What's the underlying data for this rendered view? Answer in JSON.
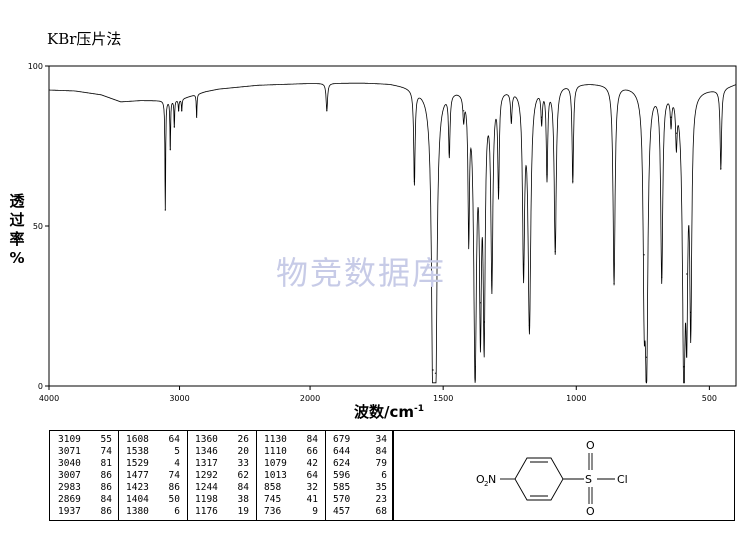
{
  "header": {
    "title": "KBr压片法"
  },
  "watermark": "物竞数据库",
  "chart_data": {
    "type": "line",
    "xlabel": "波数/cm",
    "xlabel_sup": "-1",
    "ylabel": [
      "透",
      "过",
      "率",
      "%"
    ],
    "xlim": [
      4000,
      400
    ],
    "ylim": [
      0,
      100
    ],
    "x_ticks": [
      4000,
      3000,
      2000,
      1500,
      1000,
      500
    ],
    "y_ticks": [
      0,
      50,
      100
    ],
    "grid": false,
    "baseline": [
      [
        4000,
        92.5
      ],
      [
        3800,
        92.2
      ],
      [
        3600,
        91
      ],
      [
        3450,
        88.8
      ],
      [
        3300,
        89.2
      ],
      [
        3170,
        89.2
      ],
      [
        3000,
        89.5
      ],
      [
        2900,
        90.8
      ],
      [
        2800,
        92
      ],
      [
        2700,
        92.8
      ],
      [
        2600,
        93.2
      ],
      [
        2400,
        94
      ],
      [
        2200,
        94.3
      ],
      [
        2000,
        94.6
      ],
      [
        1800,
        94.8
      ],
      [
        1700,
        94.6
      ],
      [
        1650,
        94
      ],
      [
        1550,
        92.5
      ],
      [
        1450,
        93.5
      ],
      [
        1350,
        93.5
      ],
      [
        1250,
        93.5
      ],
      [
        1150,
        94
      ],
      [
        1050,
        94.5
      ],
      [
        950,
        94.8
      ],
      [
        850,
        94.5
      ],
      [
        750,
        93.5
      ],
      [
        650,
        93
      ],
      [
        550,
        92.8
      ],
      [
        470,
        93
      ],
      [
        420,
        94
      ],
      [
        400,
        94.5
      ]
    ],
    "peaks": [
      {
        "x": 3109,
        "y": 55
      },
      {
        "x": 3071,
        "y": 74
      },
      {
        "x": 3040,
        "y": 81
      },
      {
        "x": 3007,
        "y": 86
      },
      {
        "x": 2983,
        "y": 86
      },
      {
        "x": 2869,
        "y": 84
      },
      {
        "x": 1937,
        "y": 86
      },
      {
        "x": 1608,
        "y": 64
      },
      {
        "x": 1538,
        "y": 5
      },
      {
        "x": 1529,
        "y": 4
      },
      {
        "x": 1477,
        "y": 74
      },
      {
        "x": 1423,
        "y": 86
      },
      {
        "x": 1404,
        "y": 50
      },
      {
        "x": 1380,
        "y": 6
      },
      {
        "x": 1360,
        "y": 26
      },
      {
        "x": 1346,
        "y": 20
      },
      {
        "x": 1317,
        "y": 33
      },
      {
        "x": 1292,
        "y": 62
      },
      {
        "x": 1244,
        "y": 84
      },
      {
        "x": 1198,
        "y": 38
      },
      {
        "x": 1176,
        "y": 19
      },
      {
        "x": 1130,
        "y": 84
      },
      {
        "x": 1110,
        "y": 66
      },
      {
        "x": 1079,
        "y": 42
      },
      {
        "x": 1013,
        "y": 64
      },
      {
        "x": 858,
        "y": 32
      },
      {
        "x": 745,
        "y": 41
      },
      {
        "x": 736,
        "y": 9
      },
      {
        "x": 679,
        "y": 34
      },
      {
        "x": 644,
        "y": 84
      },
      {
        "x": 624,
        "y": 79
      },
      {
        "x": 596,
        "y": 6
      },
      {
        "x": 585,
        "y": 35
      },
      {
        "x": 570,
        "y": 23
      },
      {
        "x": 457,
        "y": 68
      }
    ]
  },
  "peak_table": [
    [
      [
        "3109",
        "55"
      ],
      [
        "3071",
        "74"
      ],
      [
        "3040",
        "81"
      ],
      [
        "3007",
        "86"
      ],
      [
        "2983",
        "86"
      ],
      [
        "2869",
        "84"
      ],
      [
        "1937",
        "86"
      ]
    ],
    [
      [
        "1608",
        "64"
      ],
      [
        "1538",
        "5"
      ],
      [
        "1529",
        "4"
      ],
      [
        "1477",
        "74"
      ],
      [
        "1423",
        "86"
      ],
      [
        "1404",
        "50"
      ],
      [
        "1380",
        "6"
      ]
    ],
    [
      [
        "1360",
        "26"
      ],
      [
        "1346",
        "20"
      ],
      [
        "1317",
        "33"
      ],
      [
        "1292",
        "62"
      ],
      [
        "1244",
        "84"
      ],
      [
        "1198",
        "38"
      ],
      [
        "1176",
        "19"
      ]
    ],
    [
      [
        "1130",
        "84"
      ],
      [
        "1110",
        "66"
      ],
      [
        "1079",
        "42"
      ],
      [
        "1013",
        "64"
      ],
      [
        "858",
        "32"
      ],
      [
        "745",
        "41"
      ],
      [
        "736",
        "9"
      ]
    ],
    [
      [
        "679",
        "34"
      ],
      [
        "644",
        "84"
      ],
      [
        "624",
        "79"
      ],
      [
        "596",
        "6"
      ],
      [
        "585",
        "35"
      ],
      [
        "570",
        "23"
      ],
      [
        "457",
        "68"
      ]
    ]
  ],
  "structure": {
    "o_top": "O",
    "o_bottom": "O",
    "s_atom": "S",
    "cl_atom": "Cl",
    "no2_label": "O",
    "no2_sub": "2",
    "no2_n": "N"
  }
}
